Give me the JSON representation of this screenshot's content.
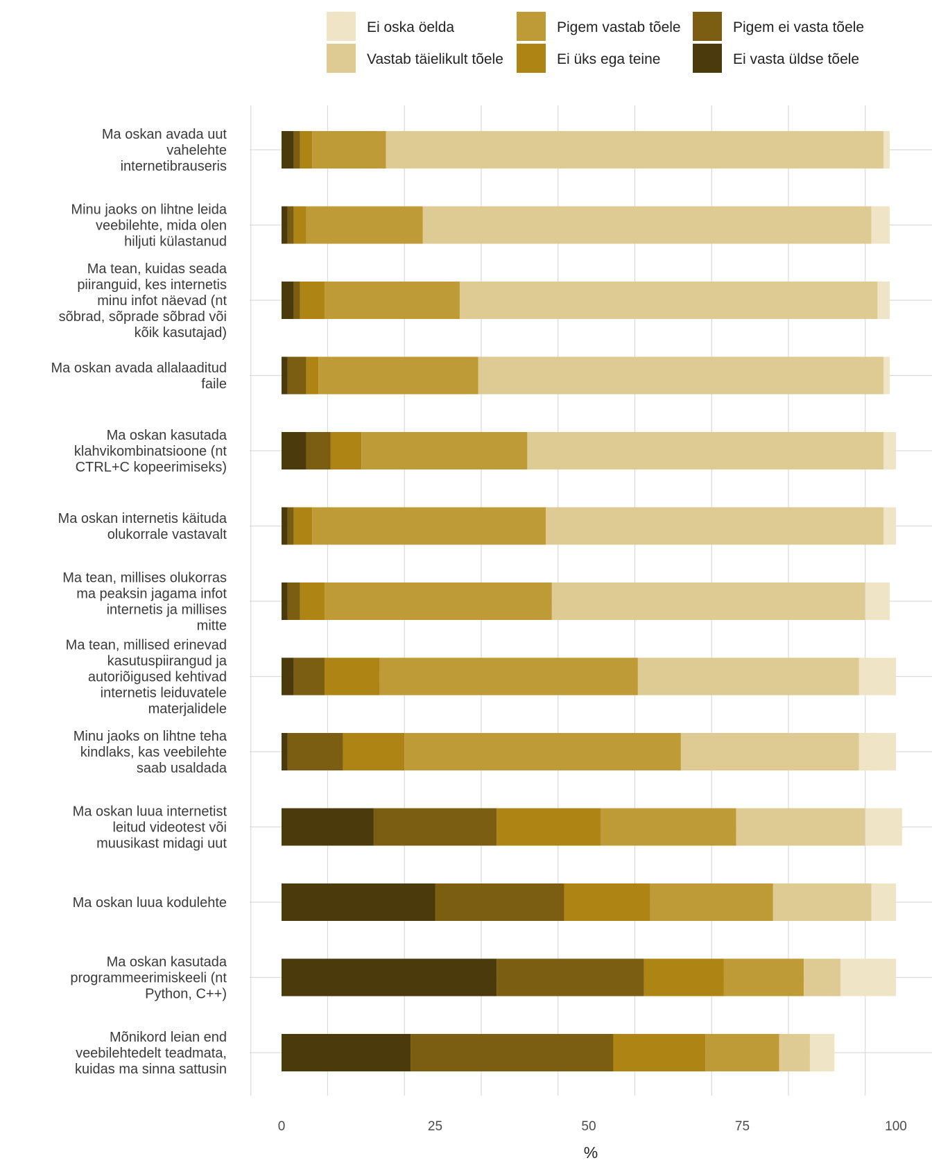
{
  "chart_data": {
    "type": "bar",
    "orientation": "horizontal",
    "stacked": true,
    "xlabel": "%",
    "ylabel": "",
    "xlim": [
      0,
      100
    ],
    "x_ticks": [
      "0",
      "25",
      "50",
      "75",
      "100"
    ],
    "grid": true,
    "legend_position": "top",
    "categories": [
      [
        "Ma oskan avada uut",
        "vahelehte",
        "internetibrauseris"
      ],
      [
        "Minu jaoks on lihtne leida",
        "veebilehte, mida olen",
        "hiljuti külastanud"
      ],
      [
        "Ma tean, kuidas seada",
        "piiranguid, kes internetis",
        "minu infot näevad (nt",
        "sõbrad, sõprade sõbrad või",
        "kõik kasutajad)"
      ],
      [
        "Ma oskan avada allalaaditud",
        "faile"
      ],
      [
        "Ma oskan kasutada",
        "klahvikombinatsioone (nt",
        "CTRL+C kopeerimiseks)"
      ],
      [
        "Ma oskan internetis käituda",
        "olukorrale vastavalt"
      ],
      [
        "Ma tean, millises olukorras",
        "ma peaksin jagama infot",
        "internetis ja millises",
        "mitte"
      ],
      [
        "Ma tean, millised erinevad",
        "kasutuspiirangud ja",
        "autoriõigused kehtivad",
        "internetis leiduvatele",
        "materjalidele"
      ],
      [
        "Minu jaoks on lihtne teha",
        "kindlaks, kas veebilehte",
        "saab usaldada"
      ],
      [
        "Ma oskan luua internetist",
        "leitud videotest või",
        "muusikast midagi uut"
      ],
      [
        "Ma oskan luua kodulehte"
      ],
      [
        "Ma oskan kasutada",
        "programmeerimiskeeli (nt",
        "Python, C++)"
      ],
      [
        "Mõnikord leian end",
        "veebilehtedelt teadmata,",
        "kuidas ma sinna sattusin"
      ]
    ],
    "series": [
      {
        "name": "Ei vasta üldse tõele",
        "color": "#4a3a0c",
        "values": [
          2,
          1,
          2,
          1,
          4,
          1,
          1,
          2,
          1,
          15,
          25,
          35,
          21
        ]
      },
      {
        "name": "Pigem ei vasta tõele",
        "color": "#7c5e12",
        "values": [
          1,
          1,
          1,
          3,
          4,
          1,
          2,
          5,
          9,
          20,
          21,
          24,
          33
        ]
      },
      {
        "name": "Ei üks ega teine",
        "color": "#ae8415",
        "values": [
          2,
          2,
          4,
          2,
          5,
          3,
          4,
          9,
          10,
          17,
          14,
          13,
          15
        ]
      },
      {
        "name": "Pigem vastab tõele",
        "color": "#bf9b38",
        "values": [
          12,
          19,
          22,
          26,
          27,
          38,
          37,
          42,
          45,
          22,
          20,
          13,
          12
        ]
      },
      {
        "name": "Vastab täielikult tõele",
        "color": "#ddcb93",
        "values": [
          81,
          73,
          68,
          66,
          58,
          55,
          51,
          36,
          29,
          21,
          16,
          6,
          5
        ]
      },
      {
        "name": "Ei oska öelda",
        "color": "#efe5c6",
        "values": [
          1,
          3,
          2,
          1,
          2,
          2,
          4,
          6,
          6,
          6,
          4,
          9,
          4
        ]
      }
    ]
  },
  "legend_layout": [
    [
      5,
      3,
      1
    ],
    [
      4,
      2,
      0
    ]
  ]
}
